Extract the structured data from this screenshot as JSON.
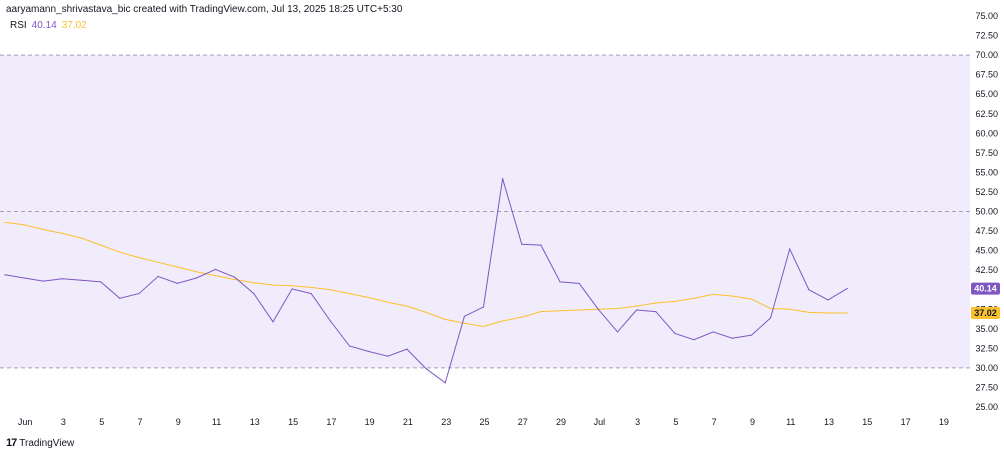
{
  "header": {
    "attribution": "aaryamann_shrivastava_bic created with TradingView.com, Jul 13, 2025 18:25 UTC+5:30"
  },
  "legend": {
    "indicator": "RSI",
    "rsi_value": "40.14",
    "ma_value": "37.02"
  },
  "footer": {
    "brand": "TradingView",
    "logo_glyph": "17"
  },
  "colors": {
    "rsi_line": "#7e57c2",
    "ma_line": "#fbc02d",
    "band_fill": "#f1ecfb",
    "rsi_badge": "#7e57c2",
    "ma_badge": "#fbc02d"
  },
  "chart_data": {
    "type": "line",
    "y_ticks": [
      "75.00",
      "72.50",
      "70.00",
      "67.50",
      "65.00",
      "62.50",
      "60.00",
      "57.50",
      "55.00",
      "52.50",
      "50.00",
      "47.50",
      "45.00",
      "42.50",
      "40.00",
      "37.50",
      "35.00",
      "32.50",
      "30.00",
      "27.50",
      "25.00"
    ],
    "ylim": [
      25,
      75
    ],
    "x_ticks": [
      "Jun",
      "3",
      "5",
      "7",
      "9",
      "11",
      "13",
      "15",
      "17",
      "19",
      "21",
      "23",
      "25",
      "27",
      "29",
      "Jul",
      "3",
      "5",
      "7",
      "9",
      "11",
      "13",
      "15",
      "17",
      "19"
    ],
    "band": {
      "upper": 70,
      "lower": 30,
      "middle": 50
    },
    "series": [
      {
        "name": "RSI",
        "values": [
          41.9,
          41.5,
          41.1,
          41.4,
          41.2,
          41.0,
          38.9,
          39.5,
          41.7,
          40.8,
          41.5,
          42.6,
          41.6,
          39.5,
          35.9,
          40.1,
          39.5,
          36.0,
          32.8,
          32.1,
          31.5,
          32.4,
          29.9,
          28.1,
          36.6,
          37.8,
          54.2,
          45.8,
          45.7,
          41.0,
          40.8,
          37.5,
          34.6,
          37.4,
          37.2,
          34.4,
          33.6,
          34.6,
          33.8,
          34.2,
          36.4,
          45.2,
          40.0,
          38.7,
          40.14
        ]
      },
      {
        "name": "MA",
        "values": [
          48.6,
          48.3,
          47.7,
          47.2,
          46.6,
          45.7,
          44.8,
          44.1,
          43.5,
          42.9,
          42.3,
          41.8,
          41.3,
          40.9,
          40.6,
          40.5,
          40.3,
          40.0,
          39.5,
          39.0,
          38.4,
          37.9,
          37.1,
          36.2,
          35.7,
          35.3,
          36.0,
          36.5,
          37.2,
          37.3,
          37.4,
          37.5,
          37.6,
          37.9,
          38.3,
          38.5,
          38.9,
          39.4,
          39.2,
          38.8,
          37.6,
          37.5,
          37.1,
          37.02,
          37.02
        ]
      }
    ]
  }
}
